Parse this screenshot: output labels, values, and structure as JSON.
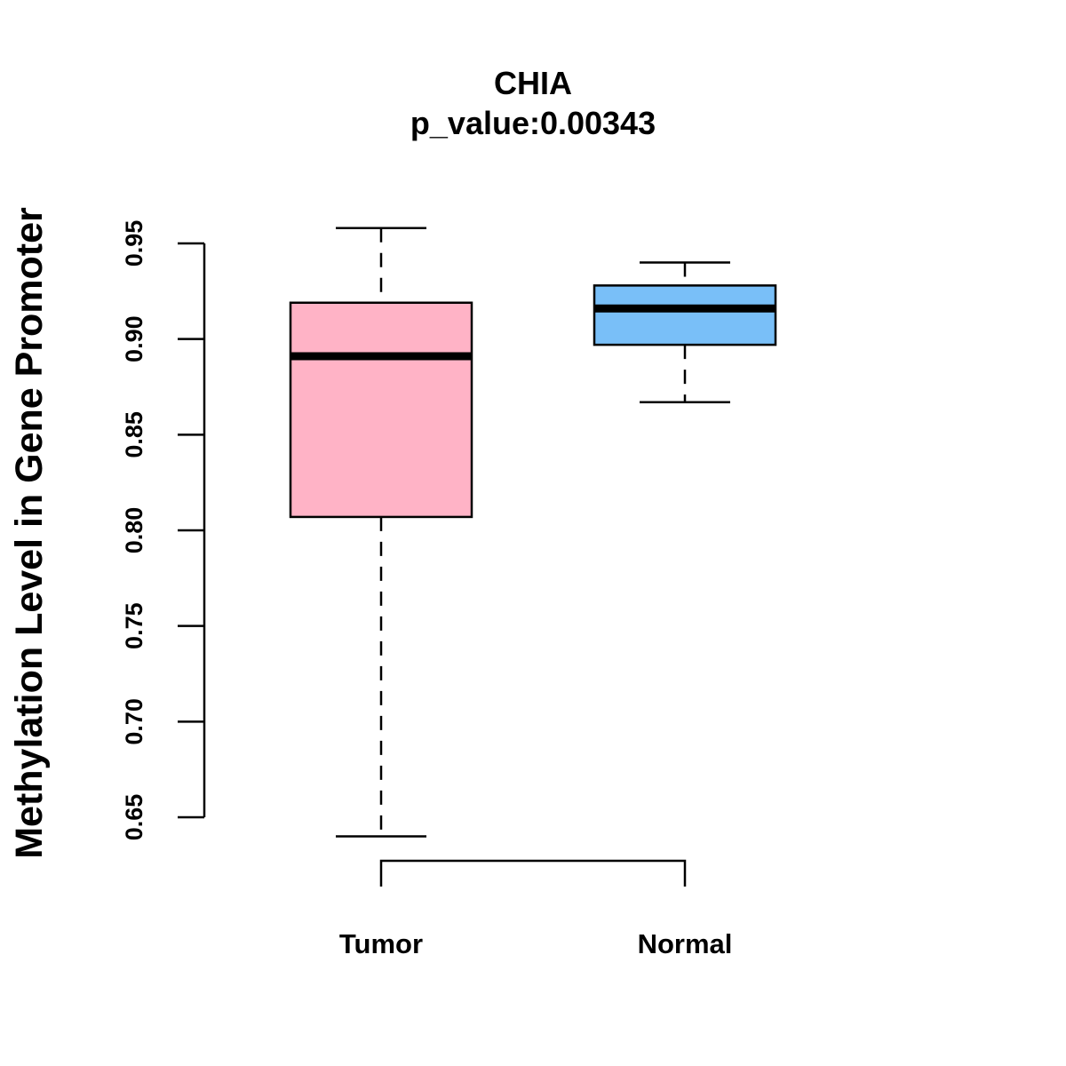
{
  "chart_data": {
    "type": "boxplot",
    "title": "CHIA",
    "subtitle": "p_value:0.00343",
    "xlabel": "",
    "ylabel": "Methylation Level in Gene Promoter",
    "ylim": [
      0.65,
      0.95
    ],
    "yticks": [
      0.65,
      0.7,
      0.75,
      0.8,
      0.85,
      0.9,
      0.95
    ],
    "ytick_labels": [
      "0.65",
      "0.70",
      "0.75",
      "0.80",
      "0.85",
      "0.90",
      "0.95"
    ],
    "categories": [
      "Tumor",
      "Normal"
    ],
    "boxes": [
      {
        "name": "Tumor",
        "whisker_low": 0.64,
        "q1": 0.807,
        "median": 0.891,
        "q3": 0.919,
        "whisker_high": 0.958,
        "color": "#FFB3C6"
      },
      {
        "name": "Normal",
        "whisker_low": 0.867,
        "q1": 0.897,
        "median": 0.916,
        "q3": 0.928,
        "whisker_high": 0.94,
        "color": "#79BFF8"
      }
    ],
    "comparison_bracket": [
      "Tumor",
      "Normal"
    ]
  }
}
